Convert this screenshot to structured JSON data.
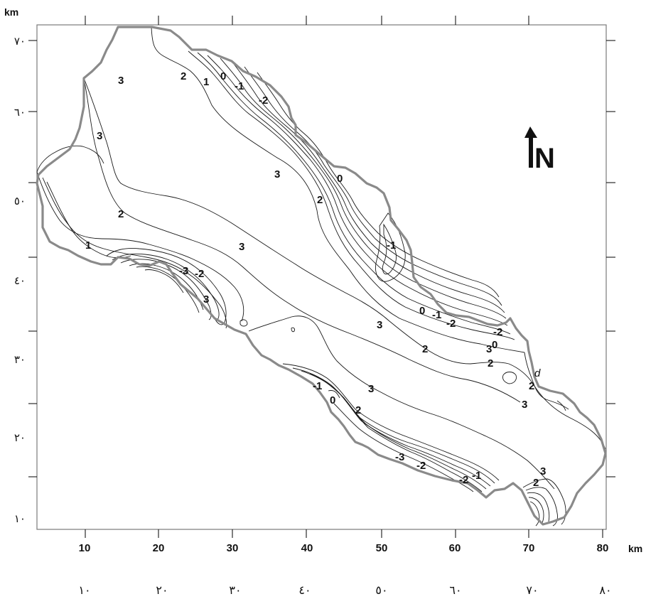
{
  "axes": {
    "y_unit": "km",
    "x_unit": "km",
    "y_ticks": [
      "٧٠",
      "٦٠",
      "٥٠",
      "٤٠",
      "٣٠",
      "٢٠",
      "١٠"
    ],
    "x_ticks": [
      "10",
      "20",
      "30",
      "40",
      "50",
      "60",
      "70",
      "80"
    ],
    "x_ticks_arabic": [
      "١٠",
      "٢٠",
      "٣٠",
      "٤٠",
      "٥٠",
      "٦٠",
      "٧٠",
      "٨٠"
    ]
  },
  "north_arrow": {
    "label": "N"
  },
  "contour_labels": [
    "3",
    "2",
    "1",
    "0",
    "-1",
    "-2",
    "3",
    "3",
    "2",
    "1",
    "3",
    "-2",
    "-3",
    "3",
    "3",
    "2",
    "0",
    "-1",
    "0",
    "-1",
    "-2",
    "-2",
    "0",
    "2",
    "3",
    "2",
    "d",
    "2",
    "3",
    "3",
    "-1",
    "0",
    "2",
    "-3",
    "-2",
    "-2",
    "-1",
    "3",
    "2"
  ]
}
